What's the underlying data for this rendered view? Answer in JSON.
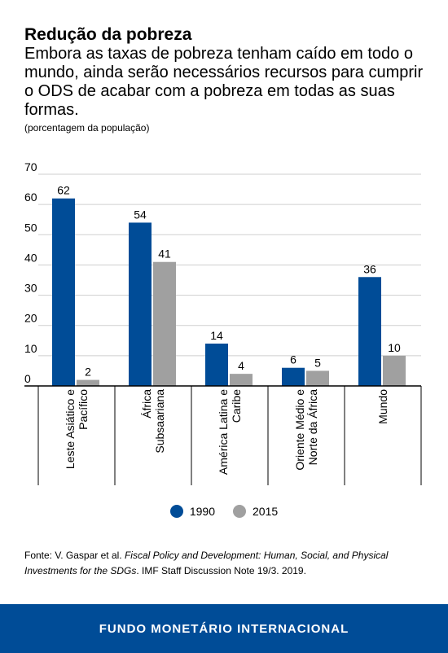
{
  "header": {
    "title": "Redução da pobreza",
    "subtitle": "Embora as taxas de pobreza tenham caído em todo o mundo, ainda serão necessários recursos para cumprir o ODS de acabar com a pobreza em todas as suas formas.",
    "unit": "(porcentagem da população)"
  },
  "chart_data": {
    "type": "bar",
    "categories": [
      [
        "Leste Asiático e",
        "Pacífico"
      ],
      [
        "África",
        "Subsaariana"
      ],
      [
        "América Latina e",
        "Caribe"
      ],
      [
        "Oriente Médio e",
        "Norte da África"
      ],
      [
        "Mundo"
      ]
    ],
    "series": [
      {
        "name": "1990",
        "values": [
          62,
          54,
          14,
          6,
          36
        ],
        "color": "#004c97"
      },
      {
        "name": "2015",
        "values": [
          2,
          41,
          4,
          5,
          10
        ],
        "color": "#a0a0a0"
      }
    ],
    "ylim": [
      0,
      70
    ],
    "yticks": [
      0,
      10,
      20,
      30,
      40,
      50,
      60,
      70
    ],
    "grid": true,
    "legend_position": "bottom"
  },
  "source": {
    "prefix": "Fonte: V. Gaspar et al. ",
    "title_italic": "Fiscal Policy and Development: Human, Social, and Physical Investments for the SDGs",
    "suffix": ". IMF Staff Discussion Note 19/3. 2019."
  },
  "footer": {
    "label": "FUNDO MONETÁRIO INTERNACIONAL",
    "color": "#004c97"
  }
}
